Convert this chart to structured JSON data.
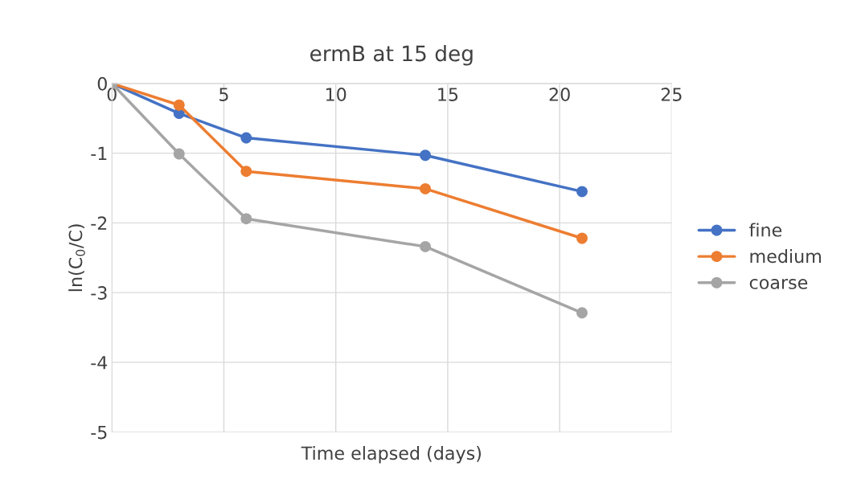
{
  "chart_data": {
    "type": "line",
    "title": "ermB at 15 deg",
    "xlabel": "Time elapsed (days)",
    "ylabel": "ln(C$_{0}$/C)",
    "series": [
      {
        "name": "fine",
        "color": "#4472c4",
        "x": [
          0,
          3,
          6,
          14,
          21
        ],
        "values": [
          0,
          -0.43,
          -0.78,
          -1.03,
          -1.55
        ]
      },
      {
        "name": "medium",
        "color": "#ed7d31",
        "x": [
          0,
          3,
          6,
          14,
          21
        ],
        "values": [
          0,
          -0.31,
          -1.26,
          -1.51,
          -2.22
        ]
      },
      {
        "name": "coarse",
        "color": "#a5a5a5",
        "x": [
          0,
          3,
          6,
          14,
          21
        ],
        "values": [
          0,
          -1.01,
          -1.94,
          -2.34,
          -3.29
        ]
      }
    ],
    "xlim": [
      0,
      25
    ],
    "xticks": [
      0,
      5,
      10,
      15,
      20,
      25
    ],
    "ylim": [
      -5,
      0
    ],
    "yticks": [
      -5,
      -4,
      -3,
      -2,
      -1,
      0
    ],
    "grid": true,
    "legend": "right",
    "marker": "circle",
    "line_style": "solid"
  }
}
